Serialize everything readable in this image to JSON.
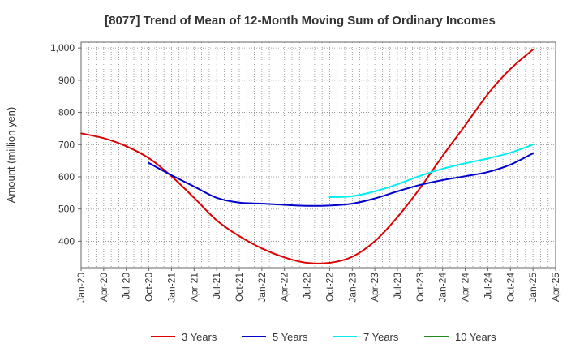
{
  "chart_data": {
    "type": "line",
    "title": "[8077]  Trend of Mean of 12-Month Moving Sum of Ordinary Incomes",
    "xlabel": "",
    "ylabel": "Amount (million yen)",
    "x_ticks": [
      "Jan-20",
      "Apr-20",
      "Jul-20",
      "Oct-20",
      "Jan-21",
      "Apr-21",
      "Jul-21",
      "Oct-21",
      "Jan-22",
      "Apr-22",
      "Jul-22",
      "Oct-22",
      "Jan-23",
      "Apr-23",
      "Jul-23",
      "Oct-23",
      "Jan-24",
      "Apr-24",
      "Jul-24",
      "Oct-24",
      "Jan-25",
      "Apr-25"
    ],
    "y_ticks": [
      400,
      500,
      600,
      700,
      800,
      900,
      1000
    ],
    "y_tick_labels": [
      "400",
      "500",
      "600",
      "700",
      "800",
      "900",
      "1,000"
    ],
    "ylim": [
      318,
      1018
    ],
    "grid": true,
    "legend_position": "bottom",
    "series": [
      {
        "name": "3 Years",
        "color": "#dd0000",
        "x": [
          0,
          1,
          2,
          3,
          4,
          5,
          6,
          7,
          8,
          9,
          10,
          11,
          12,
          13,
          14,
          15,
          16,
          17,
          18,
          19,
          20
        ],
        "values": [
          735,
          720,
          695,
          658,
          602,
          535,
          465,
          416,
          378,
          350,
          333,
          333,
          352,
          400,
          475,
          565,
          665,
          760,
          857,
          935,
          995
        ]
      },
      {
        "name": "5 Years",
        "color": "#0000cc",
        "x": [
          3,
          4,
          5,
          6,
          7,
          8,
          9,
          10,
          11,
          12,
          13,
          14,
          15,
          16,
          17,
          18,
          19,
          20
        ],
        "values": [
          643,
          605,
          570,
          535,
          520,
          517,
          513,
          510,
          511,
          517,
          533,
          555,
          575,
          590,
          602,
          615,
          638,
          673
        ]
      },
      {
        "name": "7 Years",
        "color": "#00eeee",
        "x": [
          11,
          12,
          13,
          14,
          15,
          16,
          17,
          18,
          19,
          20
        ],
        "values": [
          537,
          540,
          555,
          577,
          603,
          625,
          642,
          657,
          675,
          700
        ]
      },
      {
        "name": "10 Years",
        "color": "#228822",
        "x": [],
        "values": []
      }
    ]
  }
}
